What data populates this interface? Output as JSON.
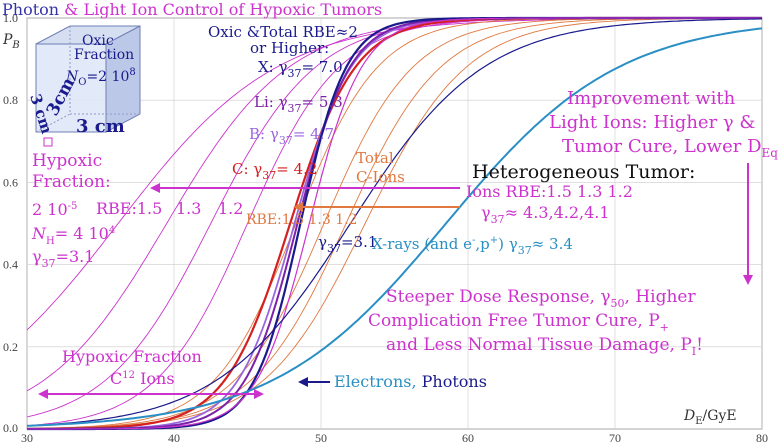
{
  "chart_data": {
    "type": "line",
    "title": "Photon & Light Ion Control of Hypoxic Tumors",
    "title_parts": [
      "Photon ",
      "& Light Ion Control of Hypoxic Tumors"
    ],
    "ylabel": "P",
    "ylabel_sub": "B",
    "xlabel": "D",
    "xlabel_sub": "E",
    "xlabel_unit": "/GyE",
    "xlim": [
      30,
      80
    ],
    "ylim": [
      0,
      1
    ],
    "xticks": [
      "30",
      "40",
      "50",
      "60",
      "70",
      "80"
    ],
    "yticks": [
      "0.0",
      "0.2",
      "0.4",
      "0.6",
      "0.8",
      "1.0"
    ],
    "grid": true,
    "colors": {
      "magenta": "#cc33cc",
      "navy": "#1a1a8c",
      "red": "#d42020",
      "orange": "#e07840",
      "purple": "#7a22aa",
      "lilac": "#9966dd",
      "teal": "#2a8fc4",
      "black": "#111111",
      "grid": "#cccccc"
    },
    "series": [
      {
        "color": "#cc33cc",
        "d50": 36.2,
        "slope": 0.185,
        "width": 0.9
      },
      {
        "color": "#cc33cc",
        "d50": 39.5,
        "slope": 0.24,
        "width": 0.9
      },
      {
        "color": "#cc33cc",
        "d50": 42.5,
        "slope": 0.28,
        "width": 0.9
      },
      {
        "color": "#cc33cc",
        "d50": 45.0,
        "slope": 0.32,
        "width": 0.9
      },
      {
        "color": "#e07840",
        "d50": 48.3,
        "slope": 0.36,
        "width": 0.9
      },
      {
        "color": "#e07840",
        "d50": 50.2,
        "slope": 0.33,
        "width": 0.9
      },
      {
        "color": "#e07840",
        "d50": 51.7,
        "slope": 0.31,
        "width": 0.9
      },
      {
        "color": "#e07840",
        "d50": 53.0,
        "slope": 0.29,
        "width": 0.9
      },
      {
        "color": "#d42020",
        "d50": 47.9,
        "slope": 0.45,
        "width": 2.2
      },
      {
        "color": "#9966dd",
        "d50": 48.2,
        "slope": 0.52,
        "width": 1.8
      },
      {
        "color": "#7a22aa",
        "d50": 48.4,
        "slope": 0.56,
        "width": 2.0
      },
      {
        "color": "#1a1a8c",
        "d50": 48.6,
        "slope": 0.64,
        "width": 2.2
      },
      {
        "color": "#cc33cc",
        "d50": 49.2,
        "slope": 0.56,
        "width": 1.2
      },
      {
        "color": "#1a1a8c",
        "d50": 52.0,
        "slope": 0.22,
        "width": 1.2
      },
      {
        "color": "#2a8fc4",
        "d50": 58.5,
        "slope": 0.17,
        "width": 2.0
      }
    ],
    "annotations": {
      "oxic_line1": "Oxic &Total RBE≈2",
      "oxic_line2": "or Higher:",
      "x_gamma": "X: γ",
      "x_gamma_sub": "37",
      "x_gamma_val": "= 7.0",
      "li": "Li: γ",
      "li_sub": "37",
      "li_val": "= 5.3",
      "b": "B: γ",
      "b_sub": "37",
      "b_val": "= 4.7",
      "c": "C: γ",
      "c_sub": "37",
      "c_val": "= 4.2",
      "total_c_ions_1": "Total",
      "total_c_ions_2": "C-Ions",
      "rbe_orange": "RBE:1.5 1.3 1.2",
      "gamma_mid": "γ",
      "gamma_mid_sub": "37",
      "gamma_mid_val": "=3.1",
      "improvement_1": "Improvement with",
      "improvement_2": "Light Ions: Higher γ &",
      "improvement_3": "Tumor Cure, Lower D",
      "improvement_3_sub": "Eq",
      "heterogeneous": "Heterogeneous Tumor:",
      "ions_rbe": "Ions RBE:1.5 1.3 1.2",
      "ions_gamma": "γ",
      "ions_gamma_sub": "37",
      "ions_gamma_val": "≈ 4.3,4.2,4.1",
      "xrays": "X-rays (and e",
      "xrays_sup1": "-",
      "xrays_mid": ",p",
      "xrays_sup2": "+",
      "xrays_end": ") γ",
      "xrays_sub": "37",
      "xrays_val": "≈ 3.4",
      "hypoxic_1": "Hypoxic",
      "hypoxic_2": "Fraction:",
      "hypoxic_3": "2 10",
      "hypoxic_3_sup": "-5",
      "hypoxic_rbe": "RBE:1.5",
      "hypoxic_13": "1.3",
      "hypoxic_12": "1.2",
      "nh": "N",
      "nh_sub": "H",
      "nh_val": "= 4 10",
      "nh_sup": "4",
      "hyp_gamma": "γ",
      "hyp_gamma_sub": "37",
      "hyp_gamma_val": "=3.1",
      "steeper_1": "Steeper Dose Response, γ",
      "steeper_1_sub": "50",
      "steeper_1_end": ", Higher",
      "steeper_2": "Complication Free Tumor Cure, P",
      "steeper_2_sub": "+",
      "steeper_3": "and Less Normal Tissue Damage, P",
      "steeper_3_sub": "I",
      "steeper_3_end": "!",
      "hyp_c12_1": "Hypoxic Fraction",
      "hyp_c12_2": "C",
      "hyp_c12_sup": "12",
      "hyp_c12_end": " Ions",
      "electrons": "Electrons, ",
      "photons": "Photons",
      "cube_oxic_1": "Oxic",
      "cube_oxic_2": "Fraction",
      "cube_no": "N",
      "cube_no_sub": "O",
      "cube_no_val": "=2 10",
      "cube_no_sup": "8",
      "cube_3cm_a": "3cm",
      "cube_3cm_b": "3 cm",
      "cube_3cm_c": "3 cm"
    }
  }
}
